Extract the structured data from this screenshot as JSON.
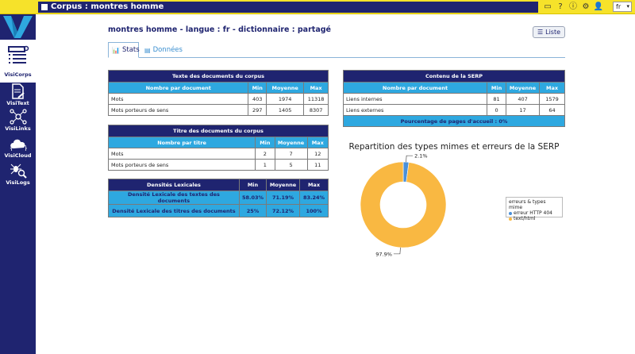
{
  "app": {
    "window_title": "Corpus : montres homme",
    "language": "fr"
  },
  "sidebar": {
    "items": [
      {
        "label": "VisiCorps"
      },
      {
        "label": "VisiText"
      },
      {
        "label": "VisiLinks"
      },
      {
        "label": "VisiCloud"
      },
      {
        "label": "VisiLogs"
      }
    ]
  },
  "header": {
    "page_title": "montres homme - langue : fr - dictionnaire : partagé",
    "liste_label": "Liste"
  },
  "tabs": [
    {
      "label": "Stats",
      "active": true
    },
    {
      "label": "Données",
      "active": false
    }
  ],
  "tables": {
    "texte": {
      "title": "Texte des documents du corpus",
      "columns": [
        "Nombre par document",
        "Min",
        "Moyenne",
        "Max"
      ],
      "rows": [
        [
          "Mots",
          "403",
          "1974",
          "11318"
        ],
        [
          "Mots porteurs de sens",
          "297",
          "1405",
          "8307"
        ]
      ]
    },
    "titre": {
      "title": "Titre des documents du corpus",
      "columns": [
        "Nombre par titre",
        "Min",
        "Moyenne",
        "Max"
      ],
      "rows": [
        [
          "Mots",
          "2",
          "7",
          "12"
        ],
        [
          "Mots porteurs de sens",
          "1",
          "5",
          "11"
        ]
      ]
    },
    "densites": {
      "columns": [
        "Densités Lexicales",
        "Min",
        "Moyenne",
        "Max"
      ],
      "rows": [
        [
          "Densité Lexicale des textes des documents",
          "58.03%",
          "71.19%",
          "83.24%"
        ],
        [
          "Densité Lexicale des titres des documents",
          "25%",
          "72.12%",
          "100%"
        ]
      ]
    },
    "serp": {
      "title": "Contenu de la SERP",
      "columns": [
        "Nombre par document",
        "Min",
        "Moyenne",
        "Max"
      ],
      "rows": [
        [
          "Liens internes",
          "81",
          "407",
          "1579"
        ],
        [
          "Liens externes",
          "0",
          "17",
          "64"
        ]
      ],
      "footer": "Pourcentage de pages d'accueil : 0%"
    }
  },
  "chart_data": {
    "type": "pie",
    "title": "Repartition des types mimes et erreurs de la SERP",
    "legend_title": "erreurs & types mime",
    "legend_placement": "right",
    "series": [
      {
        "name": "erreur HTTP 404",
        "value": 2.1,
        "label": "2.1%",
        "color": "#4a90d9"
      },
      {
        "name": "text/html",
        "value": 97.9,
        "label": "97.9%",
        "color": "#f9b842"
      }
    ]
  }
}
